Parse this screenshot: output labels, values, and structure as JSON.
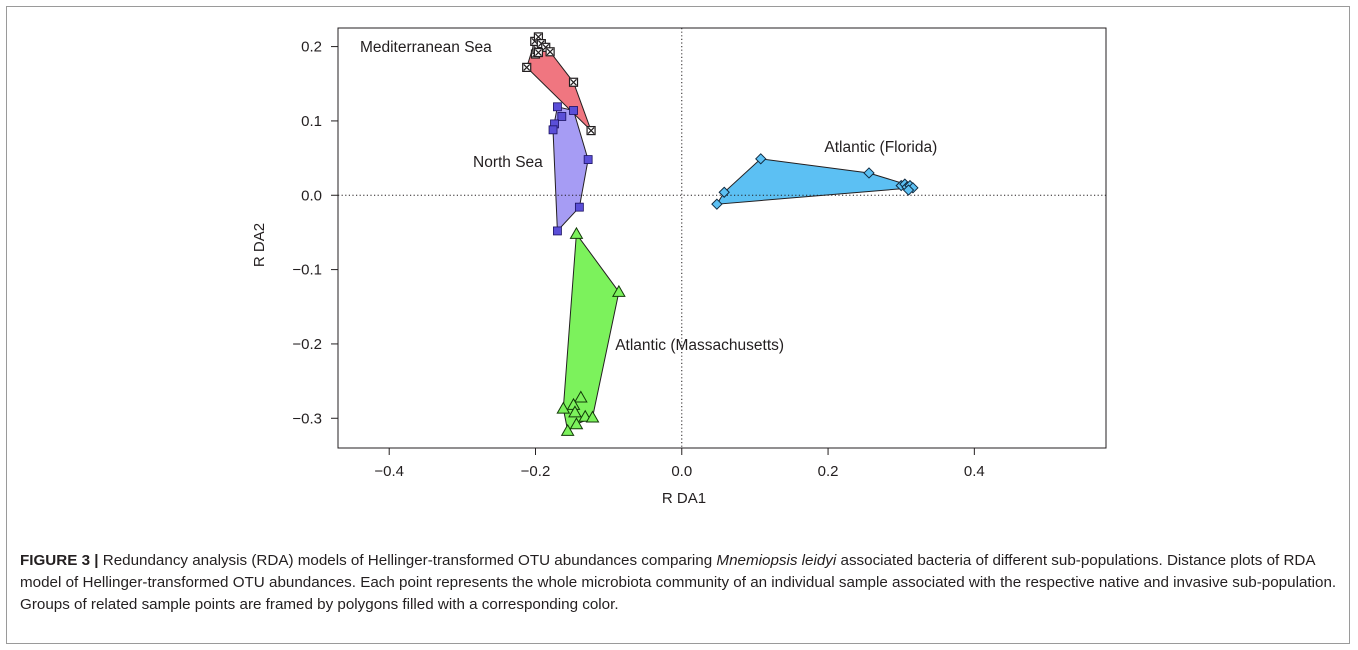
{
  "chart_data": {
    "type": "scatter",
    "xlabel": "R DA1",
    "ylabel": "R DA2",
    "xlim": [
      -0.47,
      0.58
    ],
    "ylim": [
      -0.34,
      0.225
    ],
    "xticks": [
      -0.4,
      -0.2,
      0.0,
      0.2,
      0.4
    ],
    "xtick_labels": [
      "−0.4",
      "−0.2",
      "0.0",
      "0.2",
      "0.4"
    ],
    "yticks": [
      -0.3,
      -0.2,
      -0.1,
      0.0,
      0.1,
      0.2
    ],
    "ytick_labels": [
      "−0.3",
      "−0.2",
      "−0.1",
      "0.0",
      "0.1",
      "0.2"
    ],
    "reference_lines": {
      "x": 0,
      "y": 0,
      "style": "dotted"
    },
    "grid": false,
    "series": [
      {
        "name": "Mediterranean Sea",
        "marker": "square-x",
        "marker_color": "#231f20",
        "fill_color": "#f07680",
        "label_anchor": "left",
        "label_at": [
          -0.44,
          0.193
        ],
        "points": [
          [
            -0.212,
            0.172
          ],
          [
            -0.2,
            0.19
          ],
          [
            -0.198,
            0.196
          ],
          [
            -0.201,
            0.207
          ],
          [
            -0.196,
            0.213
          ],
          [
            -0.192,
            0.204
          ],
          [
            -0.186,
            0.199
          ],
          [
            -0.18,
            0.193
          ],
          [
            -0.148,
            0.152
          ],
          [
            -0.124,
            0.087
          ],
          [
            -0.196,
            0.192
          ]
        ],
        "hull": [
          [
            -0.212,
            0.172
          ],
          [
            -0.201,
            0.207
          ],
          [
            -0.196,
            0.213
          ],
          [
            -0.192,
            0.204
          ],
          [
            -0.18,
            0.193
          ],
          [
            -0.148,
            0.152
          ],
          [
            -0.124,
            0.087
          ]
        ]
      },
      {
        "name": "North Sea",
        "marker": "square",
        "marker_color": "#5b4fd8",
        "fill_color": "#a69cf4",
        "label_anchor": "right",
        "label_at": [
          -0.19,
          0.038
        ],
        "points": [
          [
            -0.17,
            0.119
          ],
          [
            -0.164,
            0.106
          ],
          [
            -0.174,
            0.096
          ],
          [
            -0.176,
            0.088
          ],
          [
            -0.148,
            0.114
          ],
          [
            -0.128,
            0.048
          ],
          [
            -0.14,
            -0.016
          ],
          [
            -0.17,
            -0.048
          ]
        ],
        "hull": [
          [
            -0.17,
            0.119
          ],
          [
            -0.148,
            0.114
          ],
          [
            -0.128,
            0.048
          ],
          [
            -0.14,
            -0.016
          ],
          [
            -0.17,
            -0.048
          ],
          [
            -0.176,
            0.088
          ]
        ]
      },
      {
        "name": "Atlantic (Florida)",
        "marker": "diamond",
        "marker_color": "#2e7bc7",
        "fill_color": "#5cc0f3",
        "label_anchor": "left",
        "label_at": [
          0.195,
          0.058
        ],
        "points": [
          [
            0.108,
            0.049
          ],
          [
            0.256,
            0.03
          ],
          [
            0.058,
            0.004
          ],
          [
            0.048,
            -0.012
          ],
          [
            0.3,
            0.013
          ],
          [
            0.305,
            0.015
          ],
          [
            0.308,
            0.011
          ],
          [
            0.312,
            0.013
          ],
          [
            0.316,
            0.01
          ],
          [
            0.31,
            0.007
          ]
        ],
        "hull": [
          [
            0.108,
            0.049
          ],
          [
            0.256,
            0.03
          ],
          [
            0.312,
            0.013
          ],
          [
            0.316,
            0.01
          ],
          [
            0.048,
            -0.012
          ],
          [
            0.058,
            0.004
          ]
        ]
      },
      {
        "name": "Atlantic (Massachusetts)",
        "marker": "triangle",
        "marker_color": "#2d8a17",
        "fill_color": "#7cf25c",
        "label_anchor": "left",
        "label_at": [
          -0.091,
          -0.208
        ],
        "points": [
          [
            -0.144,
            -0.052
          ],
          [
            -0.086,
            -0.13
          ],
          [
            -0.138,
            -0.272
          ],
          [
            -0.148,
            -0.282
          ],
          [
            -0.146,
            -0.292
          ],
          [
            -0.162,
            -0.287
          ],
          [
            -0.132,
            -0.298
          ],
          [
            -0.122,
            -0.299
          ],
          [
            -0.144,
            -0.308
          ],
          [
            -0.156,
            -0.317
          ]
        ],
        "hull": [
          [
            -0.144,
            -0.052
          ],
          [
            -0.086,
            -0.13
          ],
          [
            -0.122,
            -0.299
          ],
          [
            -0.144,
            -0.308
          ],
          [
            -0.156,
            -0.317
          ],
          [
            -0.162,
            -0.287
          ]
        ]
      }
    ]
  },
  "caption": {
    "label": "FIGURE 3 |",
    "text_before_species": " Redundancy analysis (RDA) models of Hellinger-transformed OTU abundances comparing ",
    "species": "Mnemiopsis leidyi",
    "text_after_species": " associated bacteria of different sub-populations. Distance plots of RDA model of Hellinger-transformed OTU abundances. Each point represents the whole microbiota community of an individual sample associated with the respective native and invasive sub-population. Groups of related sample points are framed by polygons filled with a corresponding color."
  }
}
